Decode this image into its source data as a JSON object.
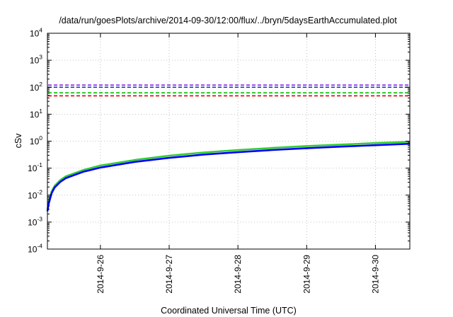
{
  "chart_data": {
    "type": "line",
    "title": "/data/run/goesPlots/archive/2014-09-30/12:00/flux/../bryn/5daysEarthAccumulated.plot",
    "xlabel": "Coordinated Universal Time (UTC)",
    "ylabel": "cSv",
    "x_scale": "time",
    "x_range": [
      "2014-09-25T05:30",
      "2014-09-30T12:00"
    ],
    "x_ticks": [
      "2014-9-26",
      "2014-9-27",
      "2014-9-28",
      "2014-9-29",
      "2014-9-30"
    ],
    "y_scale": "log",
    "y_range": [
      0.0001,
      10000
    ],
    "y_ticks": [
      {
        "base": "10",
        "exp": "-4"
      },
      {
        "base": "10",
        "exp": "-3"
      },
      {
        "base": "10",
        "exp": "-2"
      },
      {
        "base": "10",
        "exp": "-1"
      },
      {
        "base": "10",
        "exp": "0"
      },
      {
        "base": "10",
        "exp": "1"
      },
      {
        "base": "10",
        "exp": "2"
      },
      {
        "base": "10",
        "exp": "3"
      },
      {
        "base": "10",
        "exp": "4"
      }
    ],
    "grid": true,
    "reference_lines": [
      {
        "value": 120,
        "color": "#8a2be2",
        "style": "dashed"
      },
      {
        "value": 100,
        "color": "#2020c0",
        "style": "dashed"
      },
      {
        "value": 62,
        "color": "#00c000",
        "style": "dashed"
      },
      {
        "value": 48,
        "color": "#e00000",
        "style": "dashed"
      }
    ],
    "series": [
      {
        "color": "#33cc33",
        "x": [
          "2014-09-25T05:30",
          "2014-09-25T06:00",
          "2014-09-25T07:00",
          "2014-09-25T08:00",
          "2014-09-25T10:00",
          "2014-09-25T12:00",
          "2014-09-25T18:00",
          "2014-09-26T00:00",
          "2014-09-26T12:00",
          "2014-09-27T00:00",
          "2014-09-27T12:00",
          "2014-09-28T00:00",
          "2014-09-28T12:00",
          "2014-09-29T00:00",
          "2014-09-29T12:00",
          "2014-09-30T00:00",
          "2014-09-30T12:00"
        ],
        "values": [
          0.003,
          0.006,
          0.014,
          0.022,
          0.036,
          0.05,
          0.085,
          0.125,
          0.2,
          0.29,
          0.38,
          0.47,
          0.56,
          0.66,
          0.75,
          0.85,
          0.95
        ]
      },
      {
        "color": "#0000ff",
        "x": [
          "2014-09-25T05:30",
          "2014-09-25T06:00",
          "2014-09-25T07:00",
          "2014-09-25T08:00",
          "2014-09-25T10:00",
          "2014-09-25T12:00",
          "2014-09-25T18:00",
          "2014-09-26T00:00",
          "2014-09-26T12:00",
          "2014-09-27T00:00",
          "2014-09-27T12:00",
          "2014-09-28T00:00",
          "2014-09-28T12:00",
          "2014-09-29T00:00",
          "2014-09-29T12:00",
          "2014-09-30T00:00",
          "2014-09-30T12:00"
        ],
        "values": [
          0.0025,
          0.005,
          0.012,
          0.019,
          0.031,
          0.043,
          0.073,
          0.105,
          0.17,
          0.24,
          0.32,
          0.39,
          0.47,
          0.55,
          0.63,
          0.71,
          0.8
        ]
      }
    ]
  }
}
